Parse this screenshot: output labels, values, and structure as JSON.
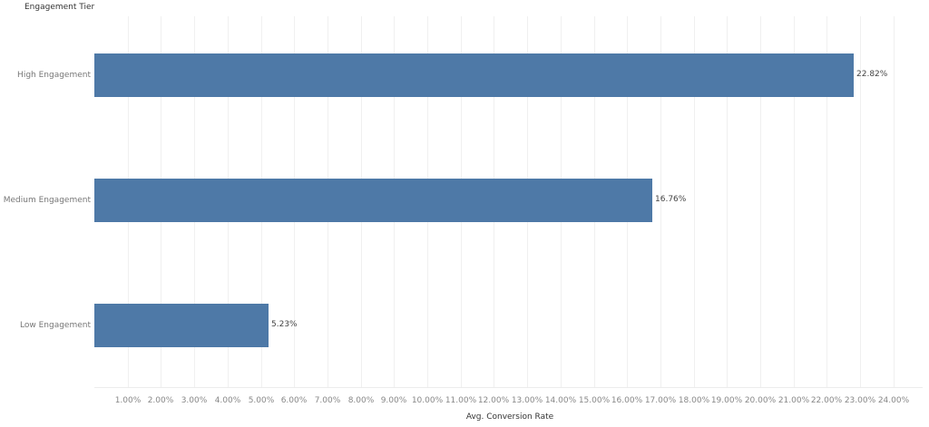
{
  "chart_data": {
    "type": "bar",
    "orientation": "horizontal",
    "title": "",
    "ylabel": "Engagement Tier",
    "xlabel": "Avg. Conversion Rate",
    "categories": [
      "High Engagement",
      "Medium Engagement",
      "Low Engagement"
    ],
    "values": [
      22.82,
      16.76,
      5.23
    ],
    "value_labels": [
      "22.82%",
      "16.76%",
      "5.23%"
    ],
    "xlim": [
      0,
      24.9
    ],
    "x_ticks": [
      "1.00%",
      "2.00%",
      "3.00%",
      "4.00%",
      "5.00%",
      "6.00%",
      "7.00%",
      "8.00%",
      "9.00%",
      "10.00%",
      "11.00%",
      "12.00%",
      "13.00%",
      "14.00%",
      "15.00%",
      "16.00%",
      "17.00%",
      "18.00%",
      "19.00%",
      "20.00%",
      "21.00%",
      "22.00%",
      "23.00%",
      "24.00%"
    ],
    "grid": true,
    "legend": "none",
    "bar_color": "#4e79a7"
  }
}
